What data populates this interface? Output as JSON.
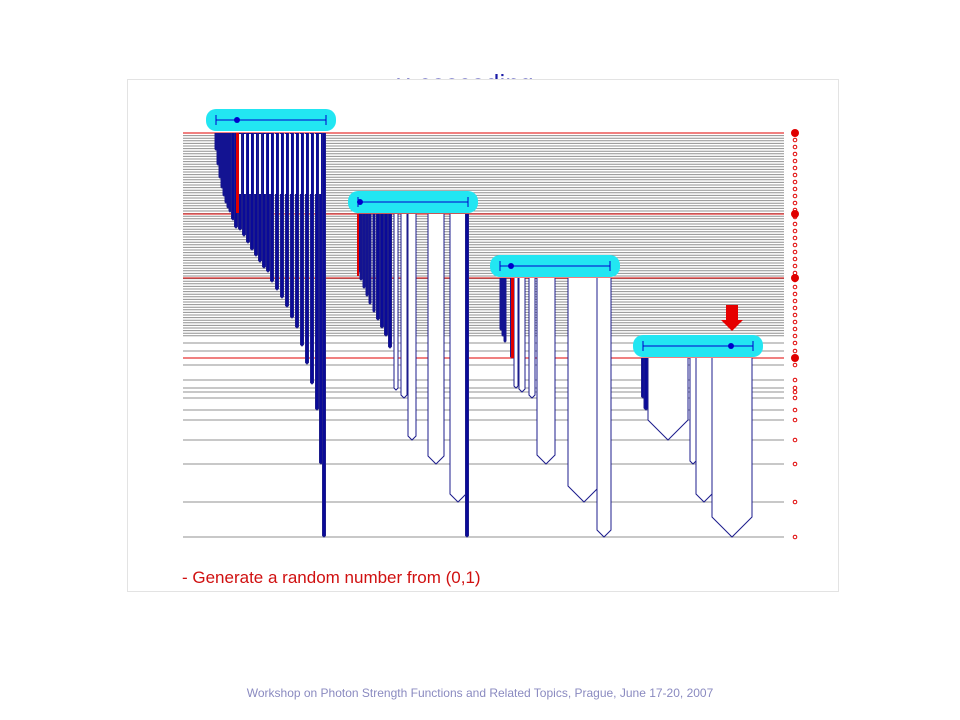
{
  "slide": {
    "title": "γ-cascading ...",
    "caption": "- Generate a random number from (0,1)",
    "footer": "Workshop on Photon Strength Functions and Related Topics, Prague, June 17-20, 2007"
  },
  "colors": {
    "level_line": "#909090",
    "highlight_level": "#e00000",
    "transition_outline": "#1c1c8c",
    "transition_fill": "#0a0a99",
    "chosen_transition": "#e00000",
    "random_box": "#22e6f2",
    "random_marker": "#0000cc",
    "arrow": "#e60000",
    "level_marker": "#e00000"
  },
  "icons": {
    "selection_arrow": "down-arrow-icon",
    "random_number_box": "random-number-interval-icon"
  }
}
